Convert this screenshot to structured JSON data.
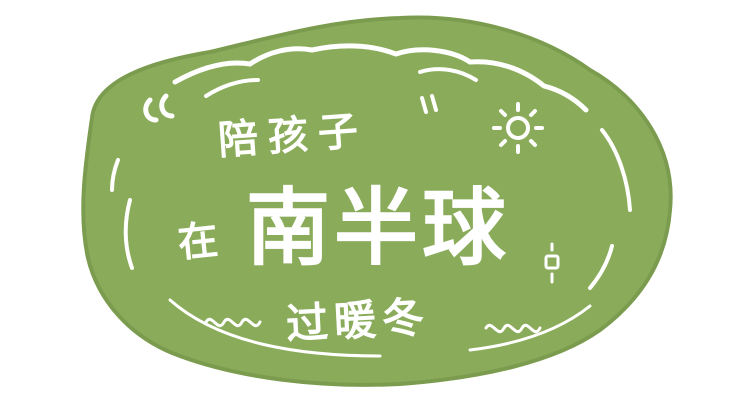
{
  "title": {
    "line1": "陪孩子",
    "prefix": "在",
    "main": "南半球",
    "line3": "过暖冬"
  },
  "colors": {
    "blob": "#8aac5a",
    "blob_edge": "#7b9c4e",
    "text": "#ffffff",
    "background": "#ffffff"
  },
  "icons": [
    "sun-doodle-icon",
    "sparkle-doodle-icon",
    "quote-marks-icon"
  ]
}
